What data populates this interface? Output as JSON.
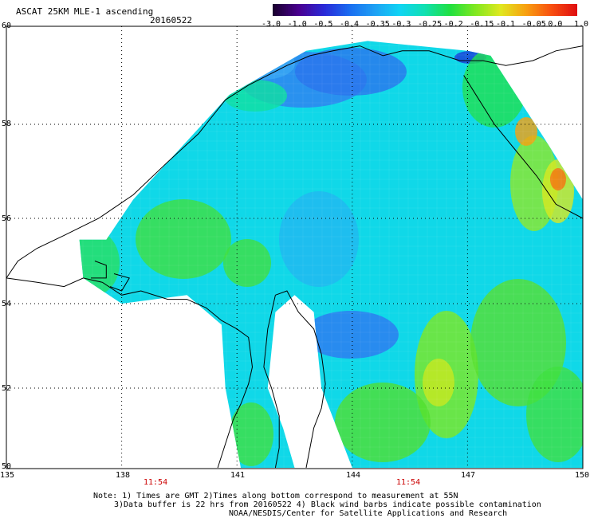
{
  "header": {
    "title": "ASCAT 25KM MLE-1 ascending",
    "date": "20160522"
  },
  "colorbar": {
    "labels": [
      "-3.0",
      "-1.0",
      "-0.5",
      "-0.4",
      "-0.35",
      "-0.3",
      "-0.25",
      "-0.2",
      "-0.15",
      "-0.1",
      "-0.05",
      "0.0",
      "1.0"
    ],
    "colors": [
      "#1a0030",
      "#4a0090",
      "#2a2ad8",
      "#1a6cf0",
      "#1ea0f4",
      "#10d4f4",
      "#10e0b0",
      "#20e040",
      "#80e820",
      "#e0e820",
      "#f8a010",
      "#f85010",
      "#e01010"
    ]
  },
  "map": {
    "lat_labels": [
      "60",
      "58",
      "56",
      "54",
      "52",
      "50"
    ],
    "lon_labels": [
      "135",
      "138",
      "141",
      "144",
      "147",
      "150"
    ],
    "times": [
      "11:54",
      "11:54"
    ],
    "grid": true
  },
  "notes": {
    "line1": "Note: 1) Times are GMT 2)Times along bottom correspond to measurement at 55N",
    "line2": "3)Data buffer is 22 hrs from 20160522 4) Black wind barbs indicate possible contamination",
    "line3": "NOAA/NESDIS/Center for Satellite Applications and Research"
  }
}
